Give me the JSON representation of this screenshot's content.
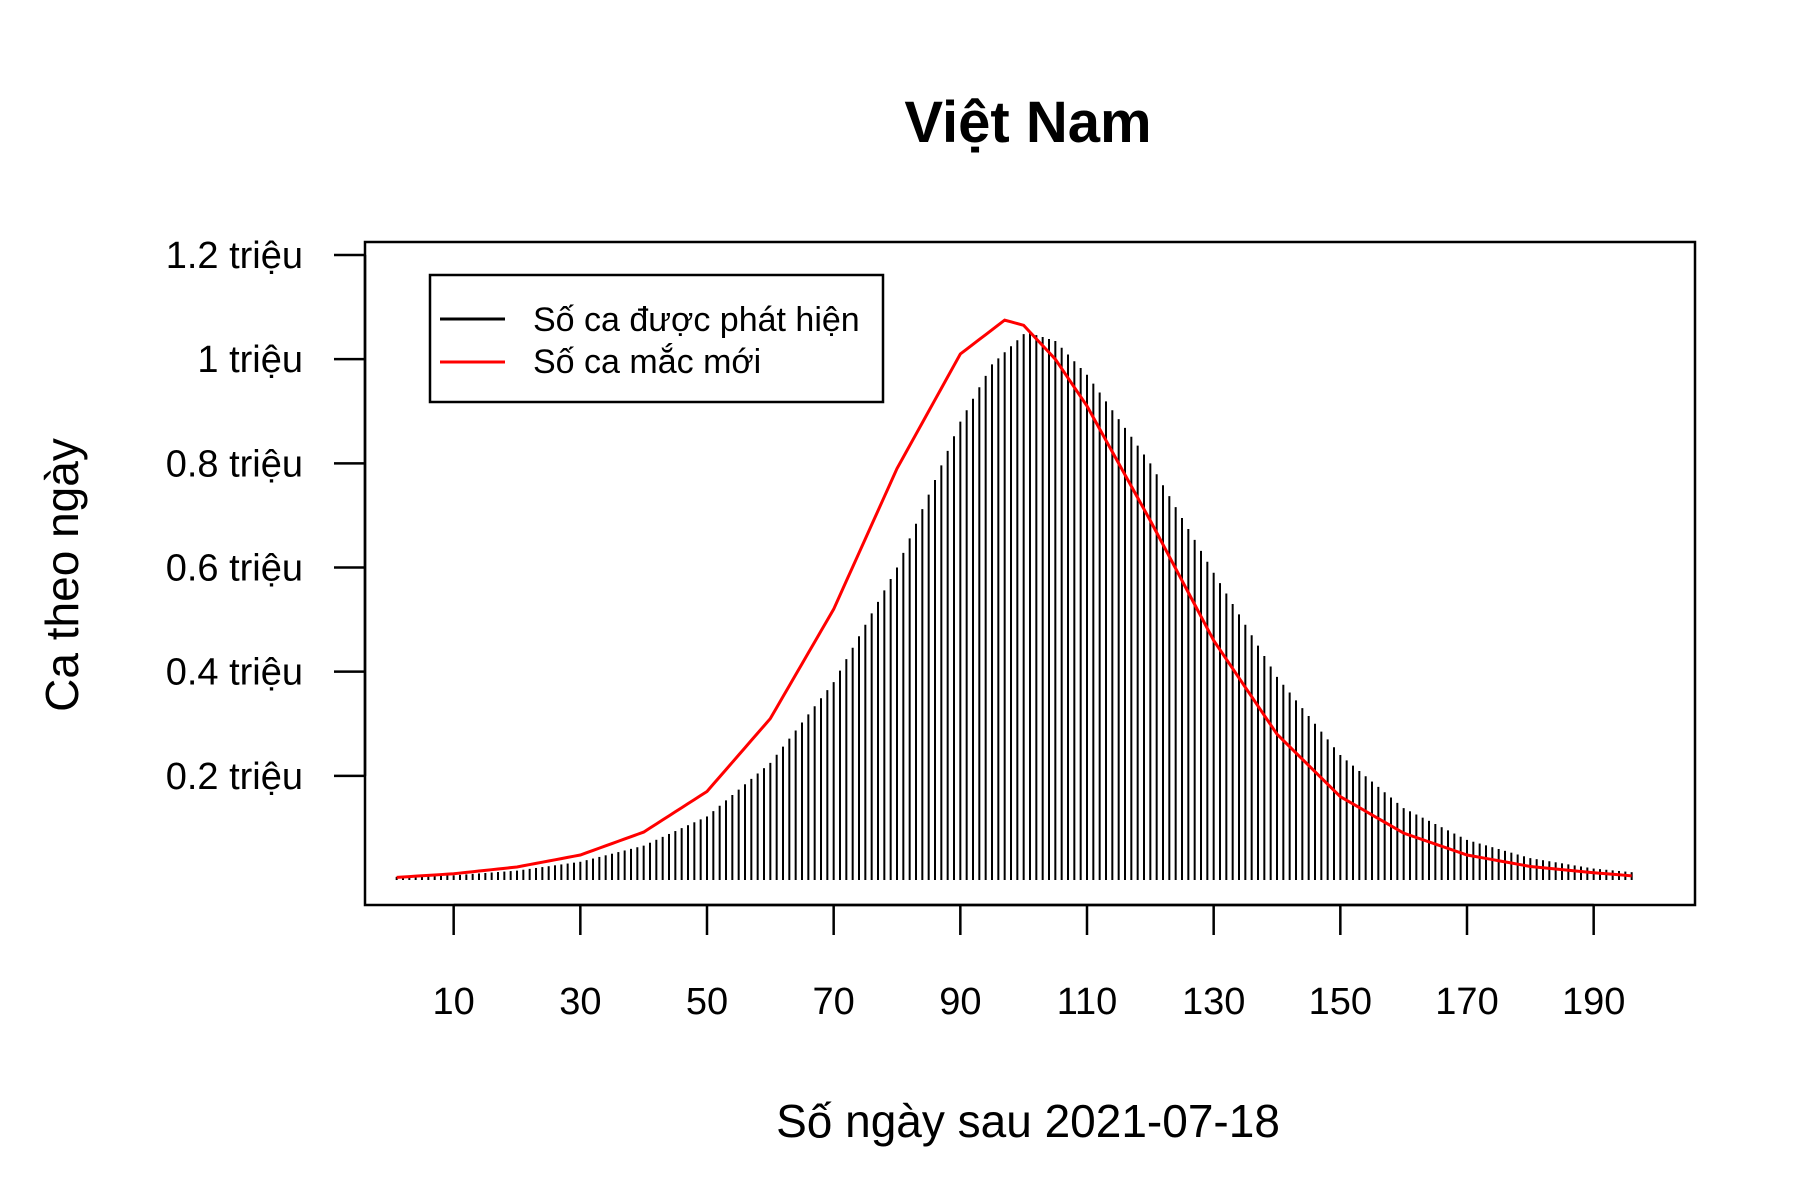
{
  "chart_data": {
    "type": "bar",
    "title": "Việt Nam",
    "xlabel": "Số ngày sau  2021-07-18",
    "ylabel": "Ca theo ngày",
    "xlim": [
      -4,
      206
    ],
    "ylim": [
      -0.048,
      1.225
    ],
    "x_ticks": [
      10,
      30,
      50,
      70,
      90,
      110,
      130,
      150,
      170,
      190
    ],
    "x_tick_labels": [
      "10",
      "30",
      "50",
      "70",
      "90",
      "110",
      "130",
      "150",
      "170",
      "190"
    ],
    "y_ticks": [
      0.2,
      0.4,
      0.6,
      0.8,
      1.0,
      1.2
    ],
    "y_tick_labels": [
      "0.2 triệu",
      "0.4 triệu",
      "0.6 triệu",
      "0.8 triệu",
      "1 triệu",
      "1.2 triệu"
    ],
    "y_unit": "triệu",
    "x_start": 1,
    "x_end": 196,
    "series": [
      {
        "name": "Số ca được phát hiện",
        "kind": "bars",
        "color": "#000000",
        "peak_day": 101,
        "x": [
          1,
          10,
          20,
          30,
          40,
          50,
          60,
          70,
          80,
          90,
          95,
          100,
          101,
          105,
          110,
          120,
          130,
          140,
          150,
          160,
          170,
          180,
          190,
          196
        ],
        "values": [
          0.006,
          0.009,
          0.018,
          0.035,
          0.066,
          0.122,
          0.225,
          0.38,
          0.6,
          0.88,
          0.99,
          1.048,
          1.05,
          1.035,
          0.97,
          0.8,
          0.59,
          0.39,
          0.24,
          0.138,
          0.077,
          0.042,
          0.022,
          0.015
        ]
      },
      {
        "name": "Số ca mắc mới",
        "kind": "line",
        "color": "#ff0000",
        "peak_day": 97,
        "x": [
          1,
          10,
          20,
          30,
          40,
          50,
          60,
          70,
          80,
          90,
          97,
          100,
          105,
          110,
          120,
          130,
          140,
          150,
          160,
          170,
          180,
          190,
          196
        ],
        "values": [
          0.005,
          0.012,
          0.025,
          0.048,
          0.092,
          0.17,
          0.31,
          0.52,
          0.79,
          1.01,
          1.075,
          1.065,
          1.0,
          0.91,
          0.69,
          0.46,
          0.28,
          0.16,
          0.09,
          0.048,
          0.026,
          0.014,
          0.008
        ]
      }
    ],
    "legend_position": "top-left",
    "grid": false
  }
}
